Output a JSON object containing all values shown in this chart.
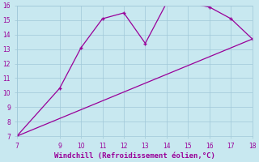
{
  "xlabel": "Windchill (Refroidissement éolien,°C)",
  "line1_x": [
    7,
    9,
    10,
    11,
    12,
    13,
    14,
    15,
    16,
    17,
    18
  ],
  "line1_y": [
    7.0,
    10.3,
    13.1,
    15.1,
    15.5,
    13.4,
    16.2,
    16.2,
    15.9,
    15.1,
    13.7
  ],
  "line2_x": [
    7,
    18
  ],
  "line2_y": [
    7.0,
    13.7
  ],
  "line_color": "#990099",
  "bg_color": "#c8e8f0",
  "grid_color": "#a0c8d8",
  "text_color": "#990099",
  "xlim": [
    7,
    18
  ],
  "ylim": [
    7,
    16
  ],
  "xticks": [
    7,
    9,
    10,
    11,
    12,
    13,
    14,
    15,
    16,
    17,
    18
  ],
  "yticks": [
    7,
    8,
    9,
    10,
    11,
    12,
    13,
    14,
    15,
    16
  ],
  "marker": "+"
}
